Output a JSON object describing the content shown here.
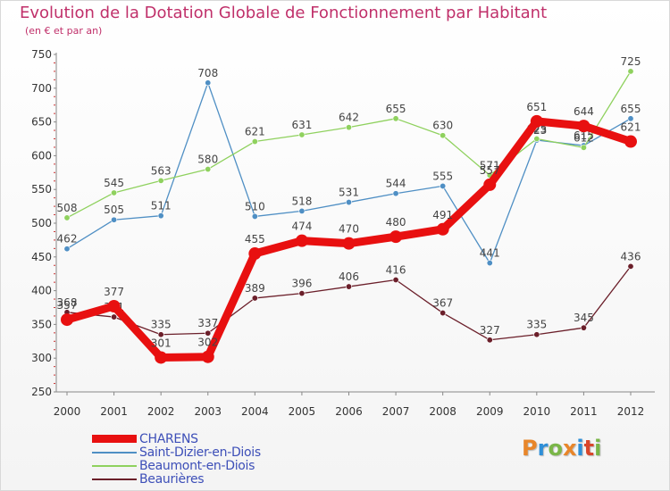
{
  "header": {
    "title": "Evolution de la Dotation Globale de Fonctionnement par Habitant",
    "subtitle": "(en € et par an)"
  },
  "brand": {
    "letters": [
      "P",
      "r",
      "o",
      "x",
      "i",
      "t",
      "i"
    ],
    "colors": [
      "#e8862a",
      "#2e8fd8",
      "#7ab648",
      "#e8862a",
      "#2e8fd8",
      "#d9462b",
      "#7ab648"
    ]
  },
  "chart_data": {
    "type": "line",
    "title": "Evolution de la Dotation Globale de Fonctionnement par Habitant",
    "subtitle": "(en € et par an)",
    "xlabel": "",
    "ylabel": "",
    "categories": [
      "2000",
      "2001",
      "2002",
      "2003",
      "2004",
      "2005",
      "2006",
      "2007",
      "2008",
      "2009",
      "2010",
      "2011",
      "2012"
    ],
    "ylim": [
      250,
      750
    ],
    "yticks": [
      250,
      300,
      350,
      400,
      450,
      500,
      550,
      600,
      650,
      700,
      750
    ],
    "grid": false,
    "legend_position": "bottom-left",
    "series": [
      {
        "name": "Beaurières",
        "color": "#6b1f2a",
        "values": [
          368,
          361,
          335,
          337,
          389,
          396,
          406,
          416,
          367,
          327,
          335,
          345,
          436
        ]
      },
      {
        "name": "Saint-Dizier-en-Diois",
        "color": "#4f8fc4",
        "values": [
          462,
          505,
          511,
          708,
          510,
          518,
          531,
          544,
          555,
          441,
          623,
          615,
          655
        ]
      },
      {
        "name": "Beaumont-en-Diois",
        "color": "#8fd15e",
        "values": [
          508,
          545,
          563,
          580,
          621,
          631,
          642,
          655,
          630,
          571,
          625,
          612,
          725
        ]
      },
      {
        "name": "CHARENS",
        "color": "#e81010",
        "values": [
          357,
          377,
          301,
          302,
          455,
          474,
          470,
          480,
          491,
          557,
          651,
          644,
          621
        ]
      }
    ]
  }
}
